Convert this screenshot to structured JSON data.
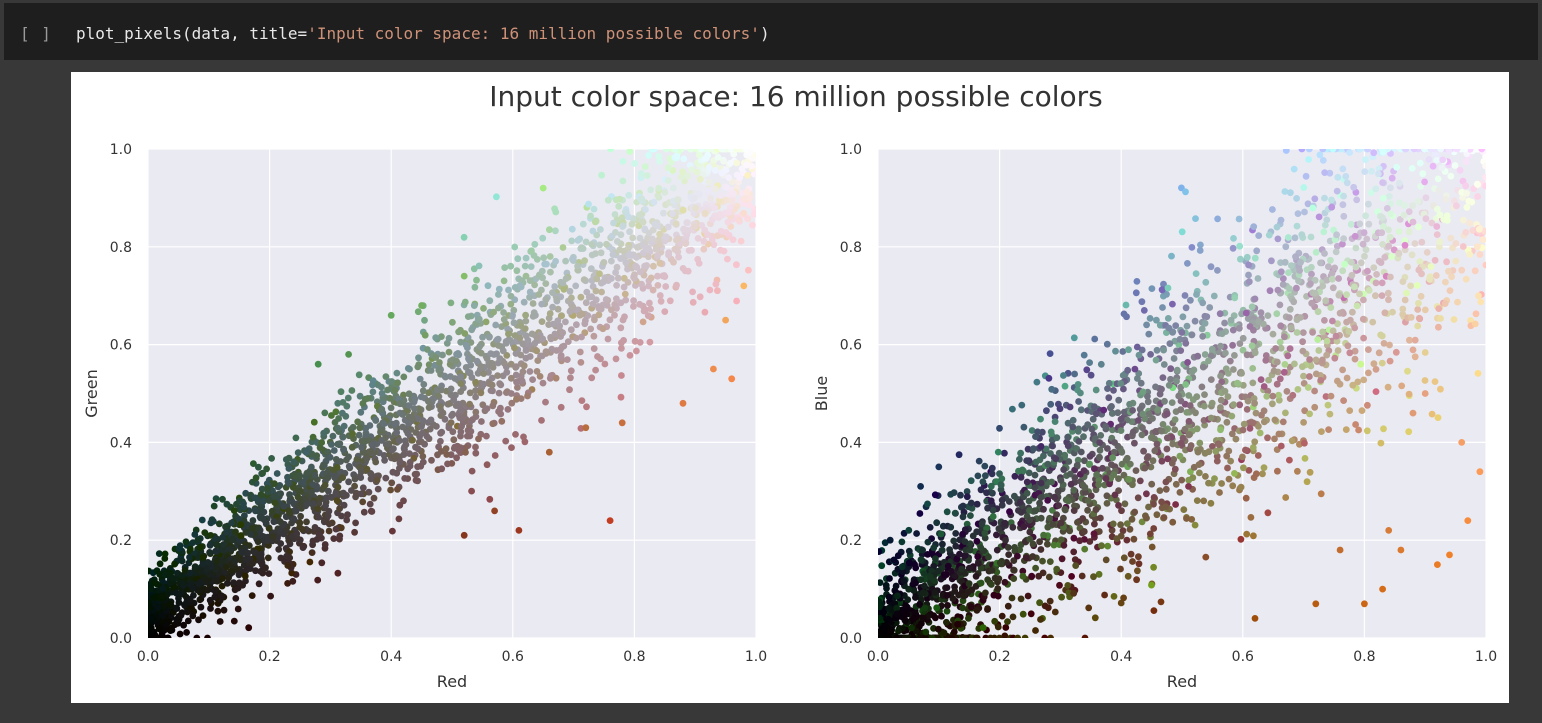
{
  "cell": {
    "run_label": "[ ]",
    "code_prefix": "plot_pixels(data, title=",
    "code_string": "'Input color space: 16 million possible colors'",
    "code_suffix": ")"
  },
  "figure": {
    "suptitle": "Input color space: 16 million possible colors",
    "background": "#eaeaf2",
    "grid_color": "#ffffff",
    "text_color": "#333333"
  },
  "chart_data": [
    {
      "type": "scatter",
      "title": "",
      "xlabel": "Red",
      "ylabel": "Green",
      "xlim": [
        0.0,
        1.0
      ],
      "ylim": [
        0.0,
        1.0
      ],
      "xticks": [
        "0.0",
        "0.2",
        "0.4",
        "0.6",
        "0.8",
        "1.0"
      ],
      "yticks": [
        "0.0",
        "0.2",
        "0.4",
        "0.6",
        "0.8",
        "1.0"
      ],
      "grid": true,
      "description_of_points": "each point colored by its own RGB value",
      "band": {
        "slope": 0.92,
        "intercept": 0.05,
        "spread": 0.09
      },
      "outliers": [
        [
          0.65,
          0.92
        ],
        [
          0.52,
          0.74
        ],
        [
          0.33,
          0.58
        ],
        [
          0.93,
          0.55
        ],
        [
          0.88,
          0.48
        ],
        [
          0.78,
          0.44
        ],
        [
          0.72,
          0.43
        ],
        [
          0.66,
          0.38
        ],
        [
          0.61,
          0.22
        ],
        [
          0.76,
          0.24
        ],
        [
          0.57,
          0.26
        ],
        [
          0.52,
          0.21
        ],
        [
          0.96,
          0.53
        ],
        [
          0.98,
          0.72
        ],
        [
          0.95,
          0.65
        ],
        [
          0.28,
          0.56
        ],
        [
          0.4,
          0.66
        ],
        [
          0.45,
          0.68
        ]
      ]
    },
    {
      "type": "scatter",
      "title": "",
      "xlabel": "Red",
      "ylabel": "Blue",
      "xlim": [
        0.0,
        1.0
      ],
      "ylim": [
        0.0,
        1.0
      ],
      "xticks": [
        "0.0",
        "0.2",
        "0.4",
        "0.6",
        "0.8",
        "1.0"
      ],
      "yticks": [
        "0.0",
        "0.2",
        "0.4",
        "0.6",
        "0.8",
        "1.0"
      ],
      "grid": true,
      "description_of_points": "each point colored by its own RGB value",
      "band": {
        "slope": 0.95,
        "intercept": 0.0,
        "spread": 0.16
      },
      "outliers": [
        [
          0.62,
          0.04
        ],
        [
          0.72,
          0.07
        ],
        [
          0.8,
          0.07
        ],
        [
          0.83,
          0.1
        ],
        [
          0.92,
          0.15
        ],
        [
          0.97,
          0.24
        ],
        [
          0.94,
          0.17
        ],
        [
          0.86,
          0.18
        ],
        [
          0.76,
          0.18
        ],
        [
          0.1,
          0.35
        ],
        [
          0.07,
          0.31
        ],
        [
          0.14,
          0.27
        ],
        [
          0.02,
          0.2
        ],
        [
          0.84,
          0.22
        ],
        [
          0.99,
          0.34
        ],
        [
          0.96,
          0.4
        ],
        [
          0.88,
          0.46
        ],
        [
          0.9,
          0.5
        ]
      ]
    }
  ]
}
